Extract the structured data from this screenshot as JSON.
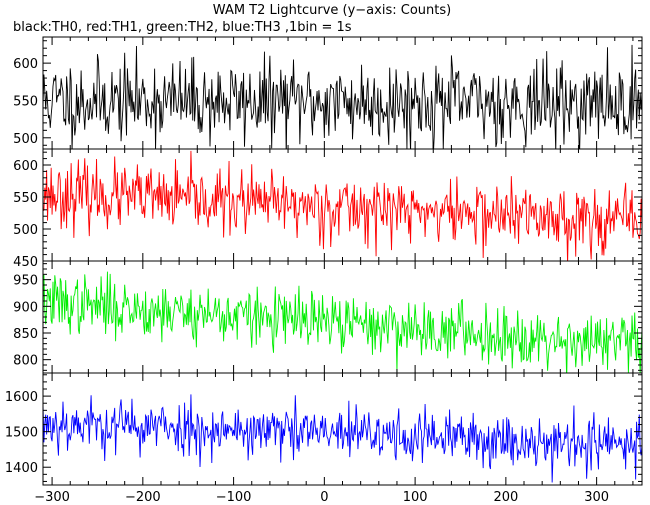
{
  "chart_data": {
    "type": "line",
    "title": "WAM T2 Lightcurve (y−axis: Counts)",
    "subtitle": "black:TH0, red:TH1, green:TH2, blue:TH3 ,1bin = 1s",
    "xlim": [
      -310,
      350
    ],
    "x_ticks": [
      -300,
      -200,
      -100,
      0,
      100,
      200,
      300
    ],
    "x_tick_labels": [
      "−300",
      "−200",
      "−100",
      "0",
      "100",
      "200",
      "300"
    ],
    "x_step": 1,
    "panels": [
      {
        "name": "TH0",
        "color": "#000000",
        "ylim": [
          485,
          635
        ],
        "y_ticks": [
          500,
          550,
          600
        ],
        "trend": {
          "start": 550,
          "end": 546
        },
        "noise": 27,
        "seed": 11
      },
      {
        "name": "TH1",
        "color": "#ff0000",
        "ylim": [
          450,
          625
        ],
        "y_ticks": [
          450,
          500,
          550,
          600
        ],
        "trend": {
          "start": 556,
          "end": 512
        },
        "noise": 25,
        "seed": 23
      },
      {
        "name": "TH2",
        "color": "#00ee00",
        "ylim": [
          775,
          985
        ],
        "y_ticks": [
          800,
          850,
          900,
          950
        ],
        "trend": {
          "start": 908,
          "end": 828
        },
        "noise": 27,
        "seed": 37
      },
      {
        "name": "TH3",
        "color": "#0000ff",
        "ylim": [
          1350,
          1665
        ],
        "y_ticks": [
          1400,
          1500,
          1600
        ],
        "trend": {
          "start": 1525,
          "end": 1462
        },
        "noise": 38,
        "seed": 53
      }
    ]
  }
}
